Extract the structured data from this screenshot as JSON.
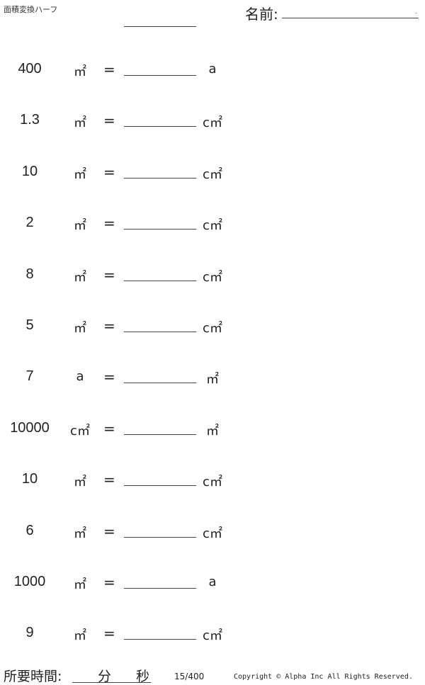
{
  "header": {
    "title": "面積変換ハーフ",
    "name_label": "名前:",
    "name_dot": "."
  },
  "problems": [
    {
      "value": "400",
      "from": "㎡",
      "eq": "=",
      "to": "a"
    },
    {
      "value": "1.3",
      "from": "㎡",
      "eq": "=",
      "to": "c㎡"
    },
    {
      "value": "10",
      "from": "㎡",
      "eq": "=",
      "to": "c㎡"
    },
    {
      "value": "2",
      "from": "㎡",
      "eq": "=",
      "to": "c㎡"
    },
    {
      "value": "8",
      "from": "㎡",
      "eq": "=",
      "to": "c㎡"
    },
    {
      "value": "5",
      "from": "㎡",
      "eq": "=",
      "to": "c㎡"
    },
    {
      "value": "7",
      "from": "a",
      "eq": "=",
      "to": "㎡"
    },
    {
      "value": "10000",
      "from": "c㎡",
      "eq": "=",
      "to": "㎡"
    },
    {
      "value": "10",
      "from": "㎡",
      "eq": "=",
      "to": "c㎡"
    },
    {
      "value": "6",
      "from": "㎡",
      "eq": "=",
      "to": "c㎡"
    },
    {
      "value": "1000",
      "from": "㎡",
      "eq": "=",
      "to": "a"
    },
    {
      "value": "9",
      "from": "㎡",
      "eq": "=",
      "to": "c㎡"
    }
  ],
  "footer": {
    "time_label": "所要時間:",
    "minutes": "分",
    "seconds": "秒",
    "page": "15/400",
    "copyright": "Copyright © Alpha Inc All Rights Reserved."
  }
}
